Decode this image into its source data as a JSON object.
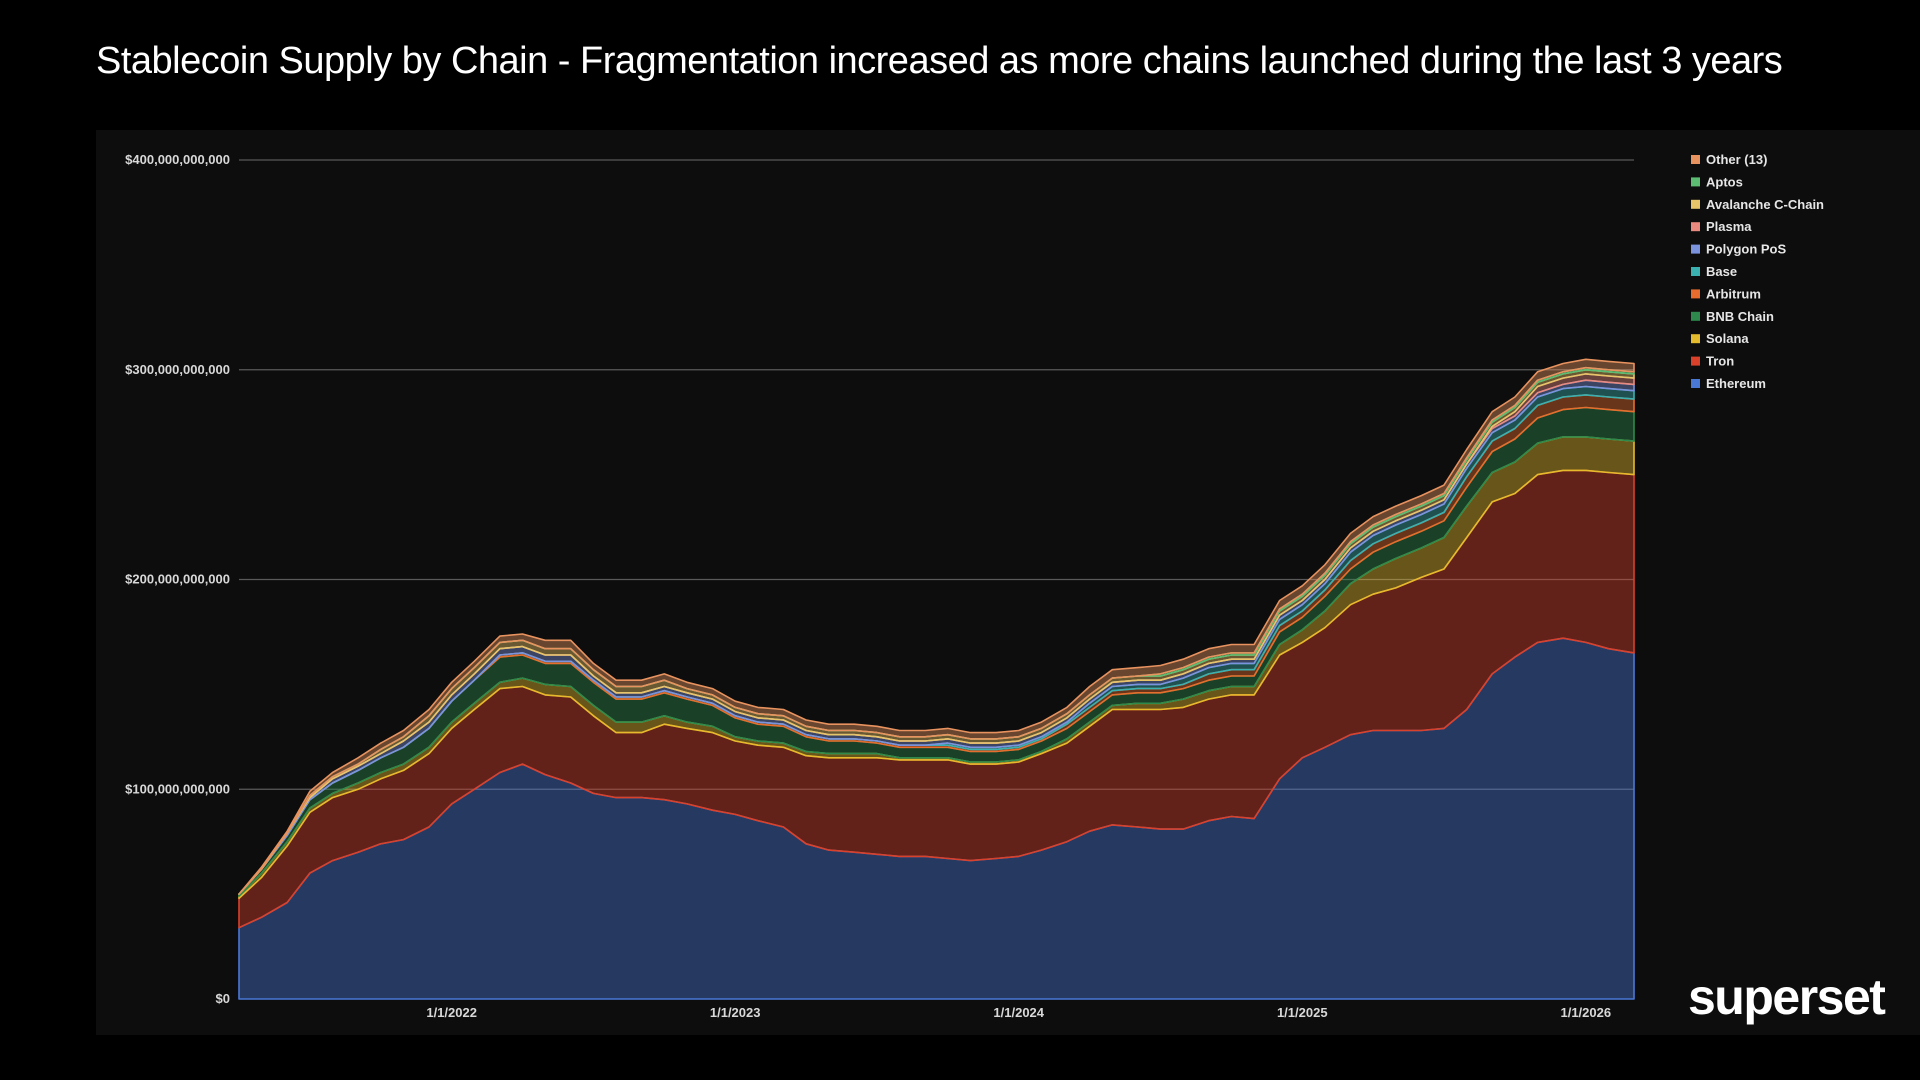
{
  "title": "Stablecoin Supply by Chain - Fragmentation increased as more chains launched during the last 3 years",
  "brand": "superset",
  "chart_data": {
    "type": "area",
    "stacked": true,
    "title": "Stablecoin Supply by Chain - Fragmentation increased as more chains launched during the last 3 years",
    "xlabel": "",
    "ylabel": "",
    "ylim": [
      0,
      400000000000
    ],
    "yticks": [
      0,
      100000000000,
      200000000000,
      300000000000,
      400000000000
    ],
    "ytick_labels": [
      "$0",
      "$100,000,000,000",
      "$200,000,000,000",
      "$300,000,000,000",
      "$400,000,000,000"
    ],
    "xlim": [
      2021.25,
      2026.17
    ],
    "xticks": [
      2022,
      2023,
      2024,
      2025,
      2026
    ],
    "xtick_labels": [
      "1/1/2022",
      "1/1/2023",
      "1/1/2024",
      "1/1/2025",
      "1/1/2026"
    ],
    "grid": true,
    "legend_position": "top-right",
    "x": [
      2021.25,
      2021.33,
      2021.42,
      2021.5,
      2021.58,
      2021.67,
      2021.75,
      2021.83,
      2021.92,
      2022.0,
      2022.08,
      2022.17,
      2022.25,
      2022.33,
      2022.42,
      2022.5,
      2022.58,
      2022.67,
      2022.75,
      2022.83,
      2022.92,
      2023.0,
      2023.08,
      2023.17,
      2023.25,
      2023.33,
      2023.42,
      2023.5,
      2023.58,
      2023.67,
      2023.75,
      2023.83,
      2023.92,
      2024.0,
      2024.08,
      2024.17,
      2024.25,
      2024.33,
      2024.42,
      2024.5,
      2024.58,
      2024.67,
      2024.75,
      2024.83,
      2024.92,
      2025.0,
      2025.08,
      2025.17,
      2025.25,
      2025.33,
      2025.42,
      2025.5,
      2025.58,
      2025.67,
      2025.75,
      2025.83,
      2025.92,
      2026.0,
      2026.08,
      2026.17
    ],
    "series": [
      {
        "name": "Ethereum",
        "color": "#4a78d6",
        "values": [
          34,
          39,
          46,
          60,
          66,
          70,
          74,
          76,
          82,
          93,
          100,
          108,
          112,
          107,
          103,
          98,
          96,
          96,
          95,
          93,
          90,
          88,
          85,
          82,
          74,
          71,
          70,
          69,
          68,
          68,
          67,
          66,
          67,
          68,
          71,
          75,
          80,
          83,
          82,
          81,
          81,
          85,
          87,
          86,
          105,
          115,
          120,
          126,
          128,
          128,
          128,
          129,
          138,
          155,
          163,
          170,
          172,
          170,
          167,
          165
        ]
      },
      {
        "name": "Tron",
        "color": "#d9412b",
        "values": [
          14,
          19,
          27,
          29,
          30,
          30,
          31,
          33,
          35,
          36,
          38,
          40,
          37,
          38,
          41,
          37,
          31,
          31,
          36,
          36,
          37,
          35,
          36,
          38,
          42,
          44,
          45,
          46,
          46,
          46,
          47,
          46,
          45,
          45,
          46,
          47,
          50,
          55,
          56,
          57,
          58,
          58,
          58,
          59,
          59,
          55,
          57,
          62,
          65,
          68,
          73,
          76,
          82,
          82,
          78,
          80,
          80,
          82,
          84,
          85
        ]
      },
      {
        "name": "Solana",
        "color": "#e5bb2e",
        "values": [
          1,
          2,
          2,
          2,
          2,
          3,
          3,
          3,
          3,
          3,
          3,
          3,
          4,
          5,
          5,
          5,
          5,
          5,
          4,
          3,
          3,
          2,
          2,
          2,
          2,
          2,
          2,
          2,
          1,
          1,
          1,
          1,
          1,
          1,
          1,
          2,
          2,
          2,
          3,
          3,
          4,
          4,
          4,
          4,
          5,
          6,
          8,
          10,
          12,
          14,
          14,
          15,
          15,
          14,
          15,
          15,
          16,
          16,
          16,
          16
        ]
      },
      {
        "name": "BNB Chain",
        "color": "#2e8a4c",
        "values": [
          1,
          2,
          3,
          4,
          5,
          6,
          7,
          8,
          9,
          10,
          11,
          12,
          11,
          10,
          11,
          11,
          11,
          11,
          11,
          11,
          10,
          9,
          8,
          8,
          7,
          6,
          6,
          5,
          5,
          5,
          5,
          5,
          5,
          5,
          5,
          5,
          5,
          5,
          5,
          5,
          5,
          5,
          5,
          5,
          6,
          6,
          7,
          7,
          8,
          8,
          8,
          8,
          9,
          10,
          11,
          12,
          13,
          14,
          14,
          14
        ]
      },
      {
        "name": "Arbitrum",
        "color": "#e66d2e",
        "values": [
          0,
          0,
          0,
          0,
          0,
          0,
          0,
          0,
          0,
          0,
          0,
          1,
          1,
          1,
          1,
          1,
          1,
          1,
          1,
          1,
          1,
          1,
          1,
          1,
          1,
          1,
          1,
          1,
          1,
          1,
          1,
          1,
          1,
          1,
          1,
          2,
          2,
          2,
          2,
          2,
          2,
          3,
          3,
          3,
          3,
          3,
          3,
          4,
          4,
          4,
          4,
          4,
          5,
          5,
          5,
          6,
          6,
          6,
          6,
          6
        ]
      },
      {
        "name": "Base",
        "color": "#3ab0b0",
        "values": [
          0,
          0,
          0,
          0,
          0,
          0,
          0,
          0,
          0,
          0,
          0,
          0,
          0,
          0,
          0,
          0,
          0,
          0,
          0,
          0,
          0,
          0,
          0,
          0,
          0,
          0,
          0,
          0,
          0,
          0,
          1,
          1,
          1,
          1,
          1,
          1,
          2,
          2,
          2,
          2,
          3,
          3,
          3,
          3,
          3,
          3,
          3,
          4,
          4,
          4,
          4,
          4,
          4,
          4,
          4,
          4,
          4,
          4,
          4,
          4
        ]
      },
      {
        "name": "Polygon PoS",
        "color": "#7b93dc",
        "values": [
          0,
          0,
          1,
          1,
          2,
          2,
          2,
          3,
          3,
          3,
          3,
          3,
          3,
          3,
          3,
          2,
          2,
          2,
          2,
          2,
          2,
          2,
          2,
          2,
          2,
          2,
          2,
          2,
          2,
          2,
          2,
          2,
          2,
          2,
          2,
          2,
          2,
          2,
          2,
          2,
          2,
          2,
          2,
          2,
          2,
          2,
          2,
          2,
          2,
          2,
          2,
          2,
          2,
          2,
          2,
          2,
          2,
          3,
          3,
          3
        ]
      },
      {
        "name": "Plasma",
        "color": "#e88a7f",
        "values": [
          0,
          0,
          0,
          0,
          0,
          0,
          0,
          0,
          0,
          0,
          0,
          0,
          0,
          0,
          0,
          0,
          0,
          0,
          0,
          0,
          0,
          0,
          0,
          0,
          0,
          0,
          0,
          0,
          0,
          0,
          0,
          0,
          0,
          0,
          0,
          0,
          0,
          0,
          0,
          0,
          0,
          0,
          0,
          0,
          0,
          0,
          0,
          0,
          0,
          0,
          0,
          0,
          0,
          1,
          2,
          3,
          3,
          3,
          3,
          3
        ]
      },
      {
        "name": "Avalanche C-Chain",
        "color": "#e6c46a",
        "values": [
          0,
          0,
          0,
          1,
          1,
          1,
          2,
          2,
          3,
          3,
          3,
          3,
          3,
          3,
          3,
          3,
          3,
          3,
          3,
          2,
          2,
          2,
          2,
          2,
          2,
          2,
          2,
          2,
          2,
          2,
          2,
          2,
          2,
          2,
          2,
          2,
          2,
          2,
          2,
          2,
          2,
          2,
          2,
          2,
          2,
          2,
          2,
          2,
          2,
          2,
          2,
          2,
          2,
          2,
          2,
          2,
          2,
          2,
          2,
          2
        ]
      },
      {
        "name": "Aptos",
        "color": "#5cbd72",
        "values": [
          0,
          0,
          0,
          0,
          0,
          0,
          0,
          0,
          0,
          0,
          0,
          0,
          0,
          0,
          0,
          0,
          0,
          0,
          0,
          0,
          0,
          0,
          0,
          0,
          0,
          0,
          0,
          0,
          0,
          0,
          0,
          0,
          0,
          0,
          0,
          0,
          0,
          0,
          0,
          1,
          1,
          1,
          1,
          1,
          1,
          1,
          1,
          1,
          1,
          1,
          1,
          1,
          1,
          1,
          1,
          1,
          1,
          1,
          1,
          1
        ]
      },
      {
        "name": "Other (13)",
        "color": "#e8935f",
        "values": [
          0,
          1,
          1,
          2,
          2,
          3,
          3,
          3,
          3,
          3,
          3,
          3,
          3,
          4,
          4,
          3,
          3,
          3,
          3,
          3,
          3,
          3,
          3,
          3,
          3,
          3,
          3,
          3,
          3,
          3,
          3,
          3,
          3,
          3,
          3,
          3,
          4,
          4,
          4,
          4,
          4,
          4,
          4,
          4,
          4,
          4,
          4,
          4,
          4,
          4,
          4,
          4,
          4,
          4,
          4,
          4,
          4,
          4,
          4,
          4
        ]
      }
    ],
    "value_unit_note": "values in billions USD"
  }
}
